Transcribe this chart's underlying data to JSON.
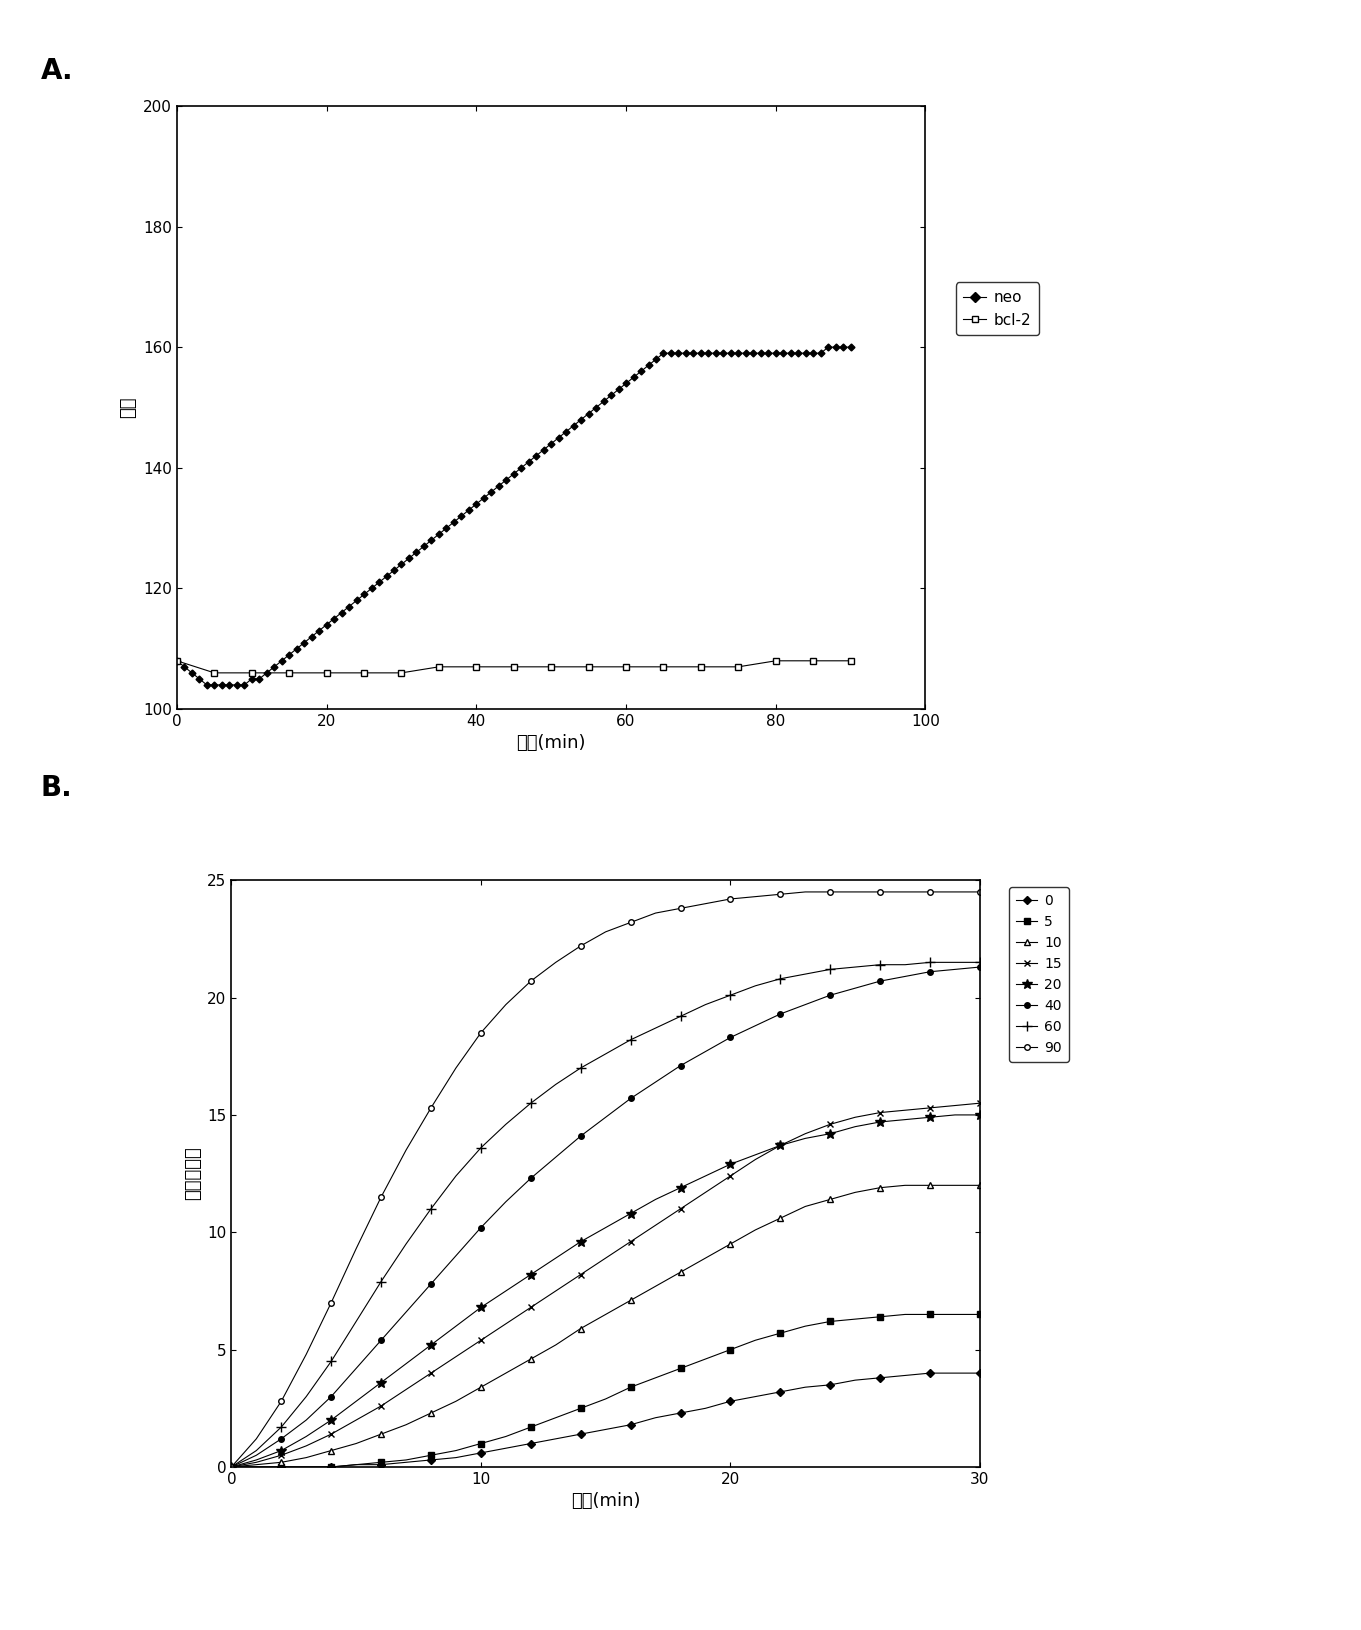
{
  "panel_A": {
    "ylabel": "莢光",
    "xlabel": "时间(min)",
    "xlim": [
      0,
      100
    ],
    "ylim": [
      100,
      200
    ],
    "yticks": [
      100,
      120,
      140,
      160,
      180,
      200
    ],
    "xticks": [
      0,
      20,
      40,
      60,
      80,
      100
    ],
    "neo_x": [
      0,
      1,
      2,
      3,
      4,
      5,
      6,
      7,
      8,
      9,
      10,
      11,
      12,
      13,
      14,
      15,
      16,
      17,
      18,
      19,
      20,
      21,
      22,
      23,
      24,
      25,
      26,
      27,
      28,
      29,
      30,
      31,
      32,
      33,
      34,
      35,
      36,
      37,
      38,
      39,
      40,
      41,
      42,
      43,
      44,
      45,
      46,
      47,
      48,
      49,
      50,
      51,
      52,
      53,
      54,
      55,
      56,
      57,
      58,
      59,
      60,
      61,
      62,
      63,
      64,
      65,
      66,
      67,
      68,
      69,
      70,
      71,
      72,
      73,
      74,
      75,
      76,
      77,
      78,
      79,
      80,
      81,
      82,
      83,
      84,
      85,
      86,
      87,
      88,
      89,
      90
    ],
    "neo_y": [
      108,
      107,
      106,
      105,
      104,
      104,
      104,
      104,
      104,
      104,
      105,
      105,
      106,
      107,
      108,
      109,
      110,
      111,
      112,
      113,
      114,
      115,
      116,
      117,
      118,
      119,
      120,
      121,
      122,
      123,
      124,
      125,
      126,
      127,
      128,
      129,
      130,
      131,
      132,
      133,
      134,
      135,
      136,
      137,
      138,
      139,
      140,
      141,
      142,
      143,
      144,
      145,
      146,
      147,
      148,
      149,
      150,
      151,
      152,
      153,
      154,
      155,
      156,
      157,
      158,
      159,
      159,
      159,
      159,
      159,
      159,
      159,
      159,
      159,
      159,
      159,
      159,
      159,
      159,
      159,
      159,
      159,
      159,
      159,
      159,
      159,
      159,
      160,
      160,
      160,
      160
    ],
    "bcl2_x": [
      0,
      5,
      10,
      15,
      20,
      25,
      30,
      35,
      40,
      45,
      50,
      55,
      60,
      65,
      70,
      75,
      80,
      85,
      90
    ],
    "bcl2_y": [
      108,
      106,
      106,
      106,
      106,
      106,
      106,
      107,
      107,
      107,
      107,
      107,
      107,
      107,
      107,
      107,
      108,
      108,
      108
    ]
  },
  "panel_B": {
    "ylabel": "修正的莢光",
    "xlabel": "时间(min)",
    "xlim": [
      0,
      30
    ],
    "ylim": [
      0,
      25
    ],
    "yticks": [
      0,
      5,
      10,
      15,
      20,
      25
    ],
    "xticks": [
      0,
      10,
      20,
      30
    ],
    "series": {
      "0": {
        "x": [
          0,
          1,
          2,
          3,
          4,
          5,
          6,
          7,
          8,
          9,
          10,
          11,
          12,
          13,
          14,
          15,
          16,
          17,
          18,
          19,
          20,
          21,
          22,
          23,
          24,
          25,
          26,
          27,
          28,
          29,
          30
        ],
        "y": [
          0,
          0.0,
          0.0,
          0.0,
          0.0,
          0.1,
          0.1,
          0.2,
          0.3,
          0.4,
          0.6,
          0.8,
          1.0,
          1.2,
          1.4,
          1.6,
          1.8,
          2.1,
          2.3,
          2.5,
          2.8,
          3.0,
          3.2,
          3.4,
          3.5,
          3.7,
          3.8,
          3.9,
          4.0,
          4.0,
          4.0
        ]
      },
      "5": {
        "x": [
          0,
          1,
          2,
          3,
          4,
          5,
          6,
          7,
          8,
          9,
          10,
          11,
          12,
          13,
          14,
          15,
          16,
          17,
          18,
          19,
          20,
          21,
          22,
          23,
          24,
          25,
          26,
          27,
          28,
          29,
          30
        ],
        "y": [
          0,
          0.0,
          0.0,
          0.0,
          0.0,
          0.1,
          0.2,
          0.3,
          0.5,
          0.7,
          1.0,
          1.3,
          1.7,
          2.1,
          2.5,
          2.9,
          3.4,
          3.8,
          4.2,
          4.6,
          5.0,
          5.4,
          5.7,
          6.0,
          6.2,
          6.3,
          6.4,
          6.5,
          6.5,
          6.5,
          6.5
        ]
      },
      "10": {
        "x": [
          0,
          1,
          2,
          3,
          4,
          5,
          6,
          7,
          8,
          9,
          10,
          11,
          12,
          13,
          14,
          15,
          16,
          17,
          18,
          19,
          20,
          21,
          22,
          23,
          24,
          25,
          26,
          27,
          28,
          29,
          30
        ],
        "y": [
          0,
          0.1,
          0.2,
          0.4,
          0.7,
          1.0,
          1.4,
          1.8,
          2.3,
          2.8,
          3.4,
          4.0,
          4.6,
          5.2,
          5.9,
          6.5,
          7.1,
          7.7,
          8.3,
          8.9,
          9.5,
          10.1,
          10.6,
          11.1,
          11.4,
          11.7,
          11.9,
          12.0,
          12.0,
          12.0,
          12.0
        ]
      },
      "15": {
        "x": [
          0,
          1,
          2,
          3,
          4,
          5,
          6,
          7,
          8,
          9,
          10,
          11,
          12,
          13,
          14,
          15,
          16,
          17,
          18,
          19,
          20,
          21,
          22,
          23,
          24,
          25,
          26,
          27,
          28,
          29,
          30
        ],
        "y": [
          0,
          0.2,
          0.5,
          0.9,
          1.4,
          2.0,
          2.6,
          3.3,
          4.0,
          4.7,
          5.4,
          6.1,
          6.8,
          7.5,
          8.2,
          8.9,
          9.6,
          10.3,
          11.0,
          11.7,
          12.4,
          13.1,
          13.7,
          14.2,
          14.6,
          14.9,
          15.1,
          15.2,
          15.3,
          15.4,
          15.5
        ]
      },
      "20": {
        "x": [
          0,
          1,
          2,
          3,
          4,
          5,
          6,
          7,
          8,
          9,
          10,
          11,
          12,
          13,
          14,
          15,
          16,
          17,
          18,
          19,
          20,
          21,
          22,
          23,
          24,
          25,
          26,
          27,
          28,
          29,
          30
        ],
        "y": [
          0,
          0.3,
          0.7,
          1.3,
          2.0,
          2.8,
          3.6,
          4.4,
          5.2,
          6.0,
          6.8,
          7.5,
          8.2,
          8.9,
          9.6,
          10.2,
          10.8,
          11.4,
          11.9,
          12.4,
          12.9,
          13.3,
          13.7,
          14.0,
          14.2,
          14.5,
          14.7,
          14.8,
          14.9,
          15.0,
          15.0
        ]
      },
      "40": {
        "x": [
          0,
          1,
          2,
          3,
          4,
          5,
          6,
          7,
          8,
          9,
          10,
          11,
          12,
          13,
          14,
          15,
          16,
          17,
          18,
          19,
          20,
          21,
          22,
          23,
          24,
          25,
          26,
          27,
          28,
          29,
          30
        ],
        "y": [
          0,
          0.5,
          1.2,
          2.0,
          3.0,
          4.2,
          5.4,
          6.6,
          7.8,
          9.0,
          10.2,
          11.3,
          12.3,
          13.2,
          14.1,
          14.9,
          15.7,
          16.4,
          17.1,
          17.7,
          18.3,
          18.8,
          19.3,
          19.7,
          20.1,
          20.4,
          20.7,
          20.9,
          21.1,
          21.2,
          21.3
        ]
      },
      "60": {
        "x": [
          0,
          1,
          2,
          3,
          4,
          5,
          6,
          7,
          8,
          9,
          10,
          11,
          12,
          13,
          14,
          15,
          16,
          17,
          18,
          19,
          20,
          21,
          22,
          23,
          24,
          25,
          26,
          27,
          28,
          29,
          30
        ],
        "y": [
          0,
          0.7,
          1.7,
          3.0,
          4.5,
          6.2,
          7.9,
          9.5,
          11.0,
          12.4,
          13.6,
          14.6,
          15.5,
          16.3,
          17.0,
          17.6,
          18.2,
          18.7,
          19.2,
          19.7,
          20.1,
          20.5,
          20.8,
          21.0,
          21.2,
          21.3,
          21.4,
          21.4,
          21.5,
          21.5,
          21.5
        ]
      },
      "90": {
        "x": [
          0,
          1,
          2,
          3,
          4,
          5,
          6,
          7,
          8,
          9,
          10,
          11,
          12,
          13,
          14,
          15,
          16,
          17,
          18,
          19,
          20,
          21,
          22,
          23,
          24,
          25,
          26,
          27,
          28,
          29,
          30
        ],
        "y": [
          0,
          1.2,
          2.8,
          4.8,
          7.0,
          9.3,
          11.5,
          13.5,
          15.3,
          17.0,
          18.5,
          19.7,
          20.7,
          21.5,
          22.2,
          22.8,
          23.2,
          23.6,
          23.8,
          24.0,
          24.2,
          24.3,
          24.4,
          24.5,
          24.5,
          24.5,
          24.5,
          24.5,
          24.5,
          24.5,
          24.5
        ]
      }
    },
    "series_order": [
      "0",
      "5",
      "10",
      "15",
      "20",
      "40",
      "60",
      "90"
    ],
    "marker_map": {
      "0": {
        "marker": "D",
        "mfc": "black",
        "label": "0"
      },
      "5": {
        "marker": "s",
        "mfc": "black",
        "label": "5"
      },
      "10": {
        "marker": "^",
        "mfc": "white",
        "label": "10"
      },
      "15": {
        "marker": "x",
        "mfc": "black",
        "label": "15"
      },
      "20": {
        "marker": "*",
        "mfc": "black",
        "label": "20"
      },
      "40": {
        "marker": "o",
        "mfc": "black",
        "label": "40"
      },
      "60": {
        "marker": "+",
        "mfc": "black",
        "label": "60"
      },
      "90": {
        "marker": "o",
        "mfc": "white",
        "label": "90"
      }
    }
  }
}
